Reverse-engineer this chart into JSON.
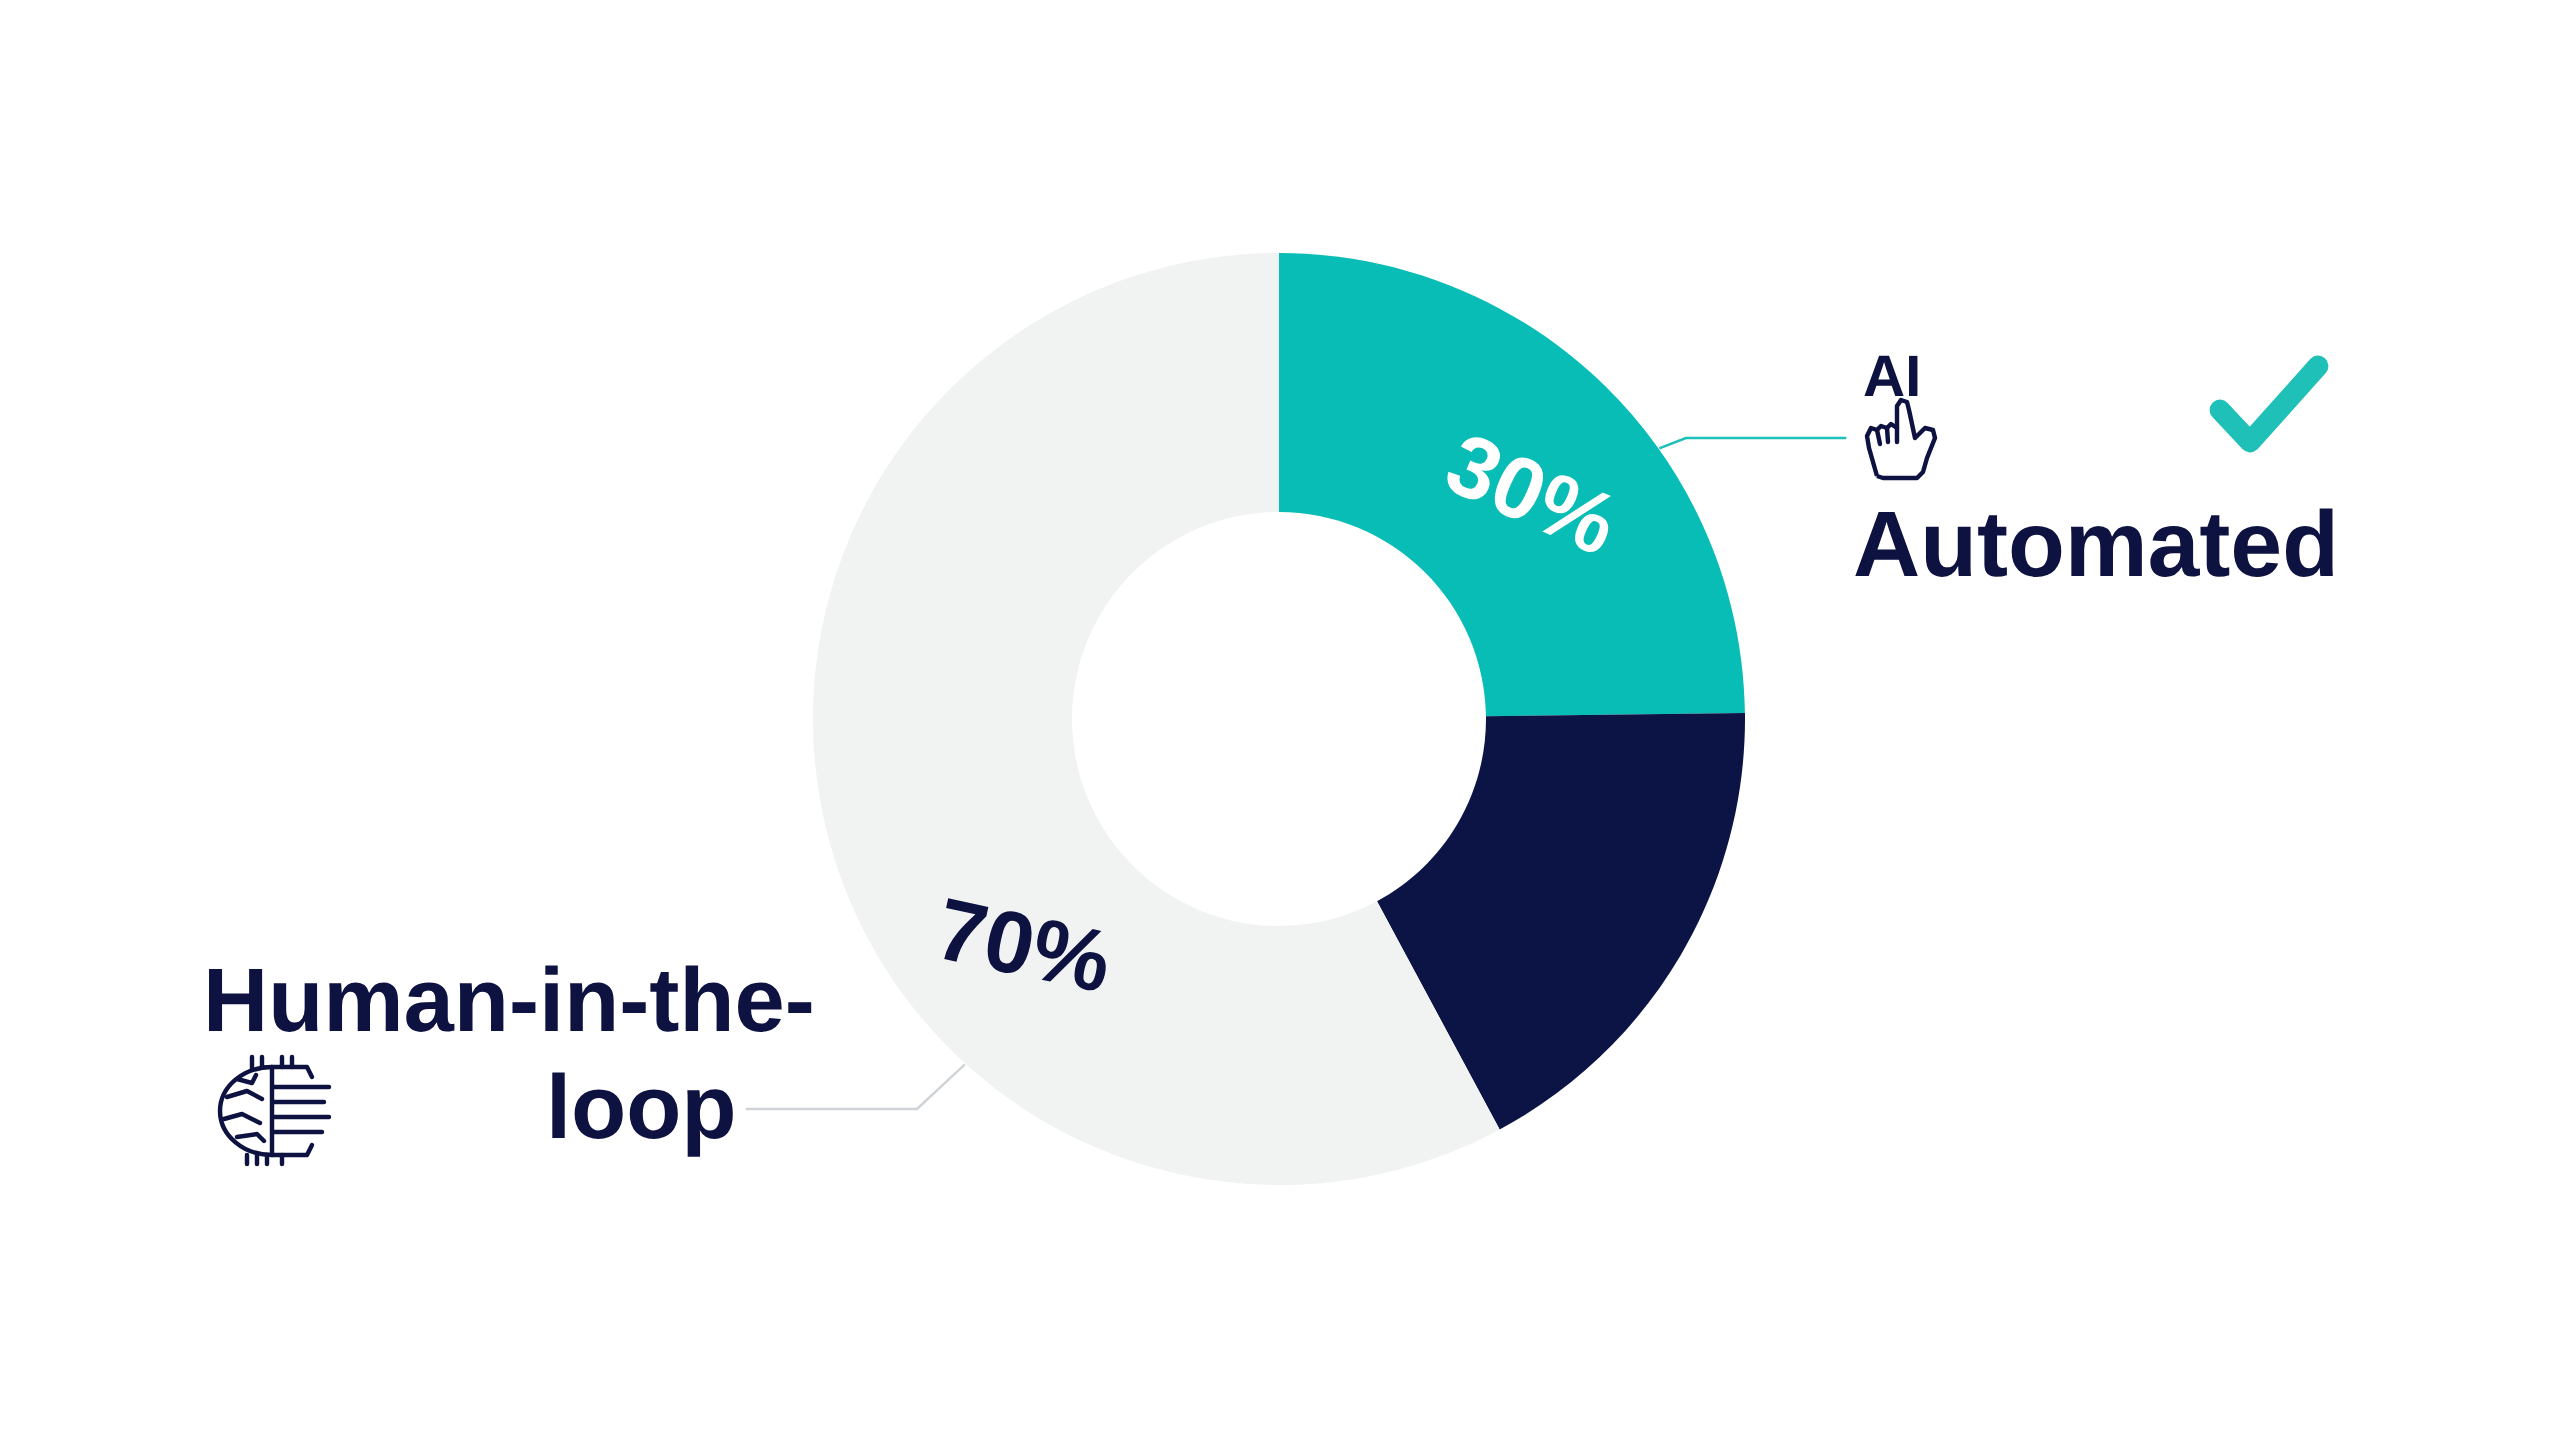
{
  "chart_data": {
    "type": "donut",
    "categories": [
      "AI Automated",
      null,
      "Human-in-the-loop"
    ],
    "values": [
      30,
      21,
      70
    ],
    "colors": [
      "#08bdb5",
      "#0b1445",
      "#f1f2f2"
    ],
    "value_labels": [
      "30%",
      null,
      "70%"
    ]
  }
}
